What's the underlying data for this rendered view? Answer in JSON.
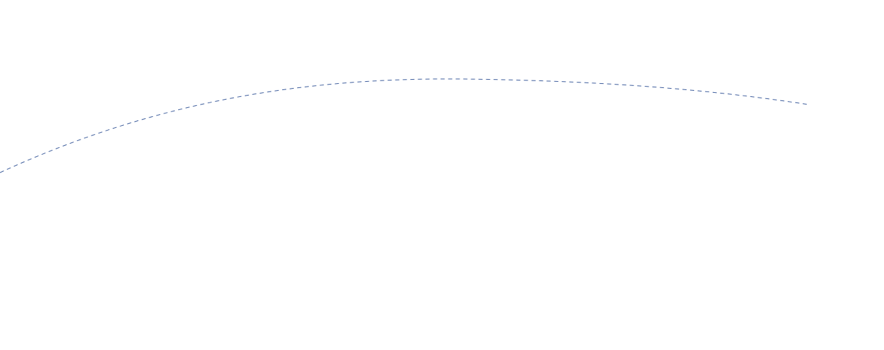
{
  "curve": {
    "stroke_color": "#3a5a9a",
    "line_style": "dashed"
  }
}
